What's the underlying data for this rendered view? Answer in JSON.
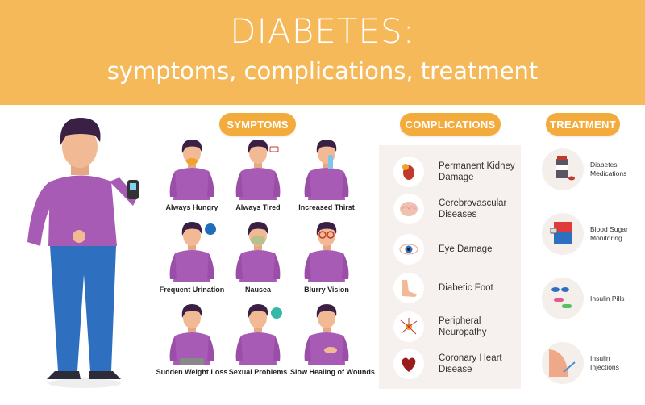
{
  "header": {
    "title": "DIABETES:",
    "subtitle": "symptoms, complications, treatment"
  },
  "colors": {
    "header": "#f6b95a",
    "pill": "#f3ab3c",
    "shirt": "#a85bb5",
    "pants": "#2f6fc0",
    "panel": "#f6f1ee"
  },
  "sections": {
    "symptoms": "SYMPTOMS",
    "complications": "COMPLICATIONS",
    "treatment": "TREATMENT"
  },
  "symptoms": [
    {
      "label": "Always Hungry",
      "icon": "burger-icon"
    },
    {
      "label": "Always Tired",
      "icon": "low-battery-icon"
    },
    {
      "label": "Increased Thirst",
      "icon": "water-bottle-icon"
    },
    {
      "label": "Frequent Urination",
      "icon": "toilet-icon"
    },
    {
      "label": "Nausea",
      "icon": "nausea-icon"
    },
    {
      "label": "Blurry Vision",
      "icon": "glasses-icon"
    },
    {
      "label": "Sudden Weight Loss",
      "icon": "loose-belt-icon"
    },
    {
      "label": "Sexual Problems",
      "icon": "male-symbol-icon"
    },
    {
      "label": "Slow Healing of Wounds",
      "icon": "wound-icon"
    }
  ],
  "complications": [
    {
      "label": "Permanent Kidney Damage",
      "icon": "kidney-icon"
    },
    {
      "label": "Cerebrovascular Diseases",
      "icon": "brain-icon"
    },
    {
      "label": "Eye Damage",
      "icon": "eye-icon"
    },
    {
      "label": "Diabetic Foot",
      "icon": "foot-icon"
    },
    {
      "label": "Peripheral Neuropathy",
      "icon": "neuron-icon"
    },
    {
      "label": "Coronary Heart Disease",
      "icon": "heart-icon"
    }
  ],
  "treatment": [
    {
      "label": "Diabetes Medications",
      "icon": "medicine-bottle-icon"
    },
    {
      "label": "Blood Sugar Monitoring",
      "icon": "glucose-monitor-icon"
    },
    {
      "label": "Insulin Pills",
      "icon": "pills-icon"
    },
    {
      "label": "Insulin Injections",
      "icon": "syringe-icon"
    }
  ]
}
